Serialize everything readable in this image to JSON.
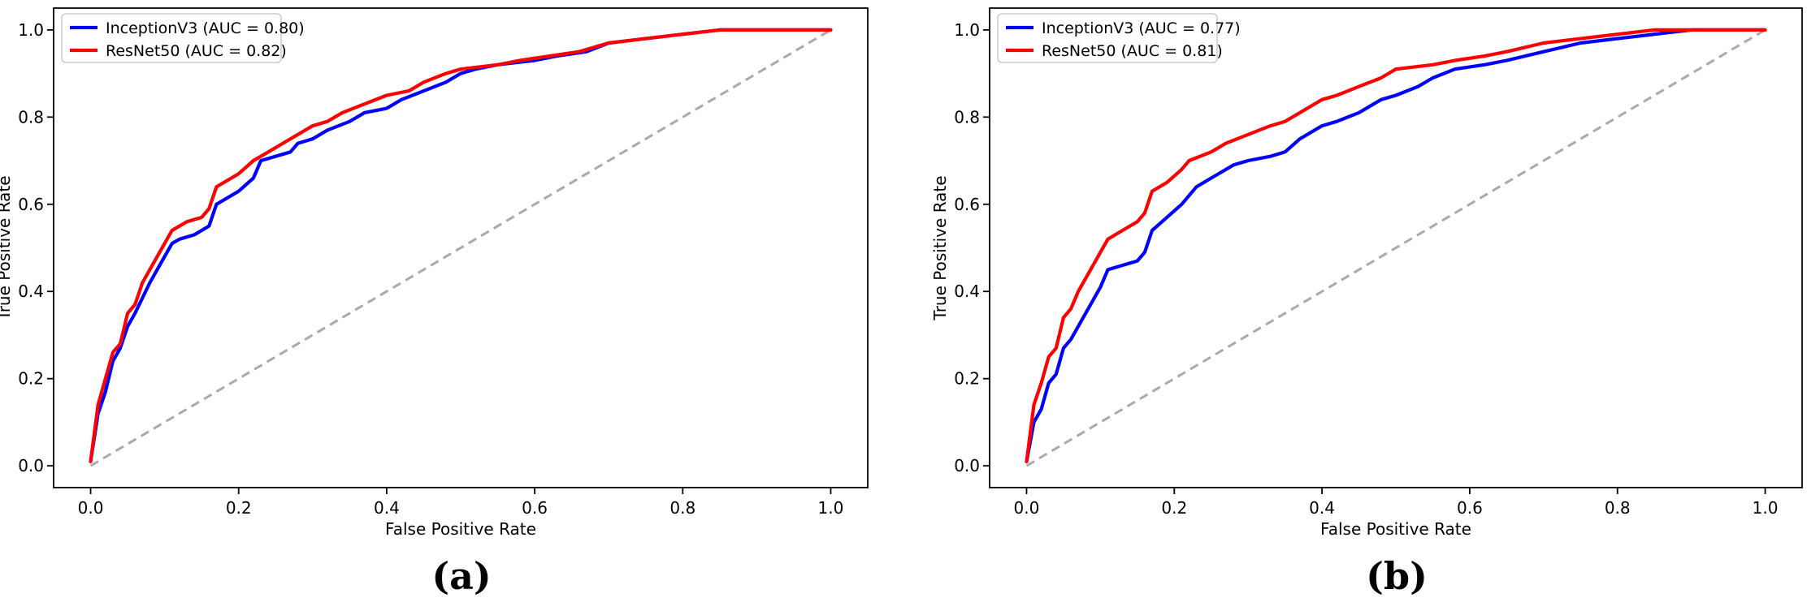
{
  "chart_data": [
    {
      "type": "line",
      "panel_label": "(a)",
      "title": "",
      "xlabel": "False Positive Rate",
      "ylabel": "True Positive Rate",
      "xlim": [
        -0.05,
        1.05
      ],
      "ylim": [
        -0.05,
        1.05
      ],
      "xticks": [
        0.0,
        0.2,
        0.4,
        0.6,
        0.8,
        1.0
      ],
      "yticks": [
        0.0,
        0.2,
        0.4,
        0.6,
        0.8,
        1.0
      ],
      "xtick_labels": [
        "0.0",
        "0.2",
        "0.4",
        "0.6",
        "0.8",
        "1.0"
      ],
      "ytick_labels": [
        "0.0",
        "0.2",
        "0.4",
        "0.6",
        "0.8",
        "1.0"
      ],
      "grid": false,
      "legend_position": "top-left",
      "series": [
        {
          "name": "InceptionV3 (AUC = 0.80)",
          "color": "#0000ff",
          "points": [
            [
              0.0,
              0.01
            ],
            [
              0.01,
              0.12
            ],
            [
              0.02,
              0.17
            ],
            [
              0.03,
              0.24
            ],
            [
              0.04,
              0.27
            ],
            [
              0.05,
              0.32
            ],
            [
              0.06,
              0.35
            ],
            [
              0.08,
              0.42
            ],
            [
              0.1,
              0.48
            ],
            [
              0.11,
              0.51
            ],
            [
              0.12,
              0.52
            ],
            [
              0.14,
              0.53
            ],
            [
              0.16,
              0.55
            ],
            [
              0.17,
              0.6
            ],
            [
              0.2,
              0.63
            ],
            [
              0.22,
              0.66
            ],
            [
              0.23,
              0.7
            ],
            [
              0.25,
              0.71
            ],
            [
              0.27,
              0.72
            ],
            [
              0.28,
              0.74
            ],
            [
              0.3,
              0.75
            ],
            [
              0.32,
              0.77
            ],
            [
              0.35,
              0.79
            ],
            [
              0.37,
              0.81
            ],
            [
              0.4,
              0.82
            ],
            [
              0.42,
              0.84
            ],
            [
              0.45,
              0.86
            ],
            [
              0.48,
              0.88
            ],
            [
              0.5,
              0.9
            ],
            [
              0.52,
              0.91
            ],
            [
              0.55,
              0.92
            ],
            [
              0.6,
              0.93
            ],
            [
              0.63,
              0.94
            ],
            [
              0.67,
              0.95
            ],
            [
              0.7,
              0.97
            ],
            [
              0.75,
              0.98
            ],
            [
              0.8,
              0.99
            ],
            [
              0.85,
              1.0
            ],
            [
              0.9,
              1.0
            ],
            [
              1.0,
              1.0
            ]
          ]
        },
        {
          "name": "ResNet50 (AUC = 0.82)",
          "color": "#ff0000",
          "points": [
            [
              0.0,
              0.01
            ],
            [
              0.01,
              0.14
            ],
            [
              0.02,
              0.2
            ],
            [
              0.03,
              0.26
            ],
            [
              0.04,
              0.28
            ],
            [
              0.05,
              0.35
            ],
            [
              0.06,
              0.37
            ],
            [
              0.07,
              0.42
            ],
            [
              0.09,
              0.48
            ],
            [
              0.11,
              0.54
            ],
            [
              0.13,
              0.56
            ],
            [
              0.15,
              0.57
            ],
            [
              0.16,
              0.59
            ],
            [
              0.17,
              0.64
            ],
            [
              0.2,
              0.67
            ],
            [
              0.22,
              0.7
            ],
            [
              0.24,
              0.72
            ],
            [
              0.26,
              0.74
            ],
            [
              0.28,
              0.76
            ],
            [
              0.3,
              0.78
            ],
            [
              0.32,
              0.79
            ],
            [
              0.34,
              0.81
            ],
            [
              0.37,
              0.83
            ],
            [
              0.4,
              0.85
            ],
            [
              0.43,
              0.86
            ],
            [
              0.45,
              0.88
            ],
            [
              0.48,
              0.9
            ],
            [
              0.5,
              0.91
            ],
            [
              0.55,
              0.92
            ],
            [
              0.58,
              0.93
            ],
            [
              0.62,
              0.94
            ],
            [
              0.66,
              0.95
            ],
            [
              0.7,
              0.97
            ],
            [
              0.75,
              0.98
            ],
            [
              0.8,
              0.99
            ],
            [
              0.85,
              1.0
            ],
            [
              0.9,
              1.0
            ],
            [
              1.0,
              1.0
            ]
          ]
        }
      ],
      "reference_line": {
        "name": "chance",
        "color": "#aaaaaa",
        "points": [
          [
            0.0,
            0.0
          ],
          [
            1.0,
            1.0
          ]
        ]
      }
    },
    {
      "type": "line",
      "panel_label": "(b)",
      "title": "",
      "xlabel": "False Positive Rate",
      "ylabel": "True Positive Rate",
      "xlim": [
        -0.05,
        1.05
      ],
      "ylim": [
        -0.05,
        1.05
      ],
      "xticks": [
        0.0,
        0.2,
        0.4,
        0.6,
        0.8,
        1.0
      ],
      "yticks": [
        0.0,
        0.2,
        0.4,
        0.6,
        0.8,
        1.0
      ],
      "xtick_labels": [
        "0.0",
        "0.2",
        "0.4",
        "0.6",
        "0.8",
        "1.0"
      ],
      "ytick_labels": [
        "0.0",
        "0.2",
        "0.4",
        "0.6",
        "0.8",
        "1.0"
      ],
      "grid": false,
      "legend_position": "top-left",
      "series": [
        {
          "name": "InceptionV3 (AUC = 0.77)",
          "color": "#0000ff",
          "points": [
            [
              0.0,
              0.01
            ],
            [
              0.01,
              0.1
            ],
            [
              0.02,
              0.13
            ],
            [
              0.03,
              0.19
            ],
            [
              0.04,
              0.21
            ],
            [
              0.05,
              0.27
            ],
            [
              0.06,
              0.29
            ],
            [
              0.08,
              0.35
            ],
            [
              0.1,
              0.41
            ],
            [
              0.11,
              0.45
            ],
            [
              0.13,
              0.46
            ],
            [
              0.15,
              0.47
            ],
            [
              0.16,
              0.49
            ],
            [
              0.17,
              0.54
            ],
            [
              0.19,
              0.57
            ],
            [
              0.21,
              0.6
            ],
            [
              0.23,
              0.64
            ],
            [
              0.25,
              0.66
            ],
            [
              0.27,
              0.68
            ],
            [
              0.28,
              0.69
            ],
            [
              0.3,
              0.7
            ],
            [
              0.33,
              0.71
            ],
            [
              0.35,
              0.72
            ],
            [
              0.37,
              0.75
            ],
            [
              0.4,
              0.78
            ],
            [
              0.42,
              0.79
            ],
            [
              0.45,
              0.81
            ],
            [
              0.48,
              0.84
            ],
            [
              0.5,
              0.85
            ],
            [
              0.53,
              0.87
            ],
            [
              0.55,
              0.89
            ],
            [
              0.58,
              0.91
            ],
            [
              0.62,
              0.92
            ],
            [
              0.65,
              0.93
            ],
            [
              0.7,
              0.95
            ],
            [
              0.75,
              0.97
            ],
            [
              0.8,
              0.98
            ],
            [
              0.85,
              0.99
            ],
            [
              0.9,
              1.0
            ],
            [
              1.0,
              1.0
            ]
          ]
        },
        {
          "name": "ResNet50 (AUC = 0.81)",
          "color": "#ff0000",
          "points": [
            [
              0.0,
              0.01
            ],
            [
              0.01,
              0.14
            ],
            [
              0.02,
              0.19
            ],
            [
              0.03,
              0.25
            ],
            [
              0.04,
              0.27
            ],
            [
              0.05,
              0.34
            ],
            [
              0.06,
              0.36
            ],
            [
              0.07,
              0.4
            ],
            [
              0.09,
              0.46
            ],
            [
              0.11,
              0.52
            ],
            [
              0.13,
              0.54
            ],
            [
              0.15,
              0.56
            ],
            [
              0.16,
              0.58
            ],
            [
              0.17,
              0.63
            ],
            [
              0.19,
              0.65
            ],
            [
              0.21,
              0.68
            ],
            [
              0.22,
              0.7
            ],
            [
              0.25,
              0.72
            ],
            [
              0.27,
              0.74
            ],
            [
              0.3,
              0.76
            ],
            [
              0.33,
              0.78
            ],
            [
              0.35,
              0.79
            ],
            [
              0.37,
              0.81
            ],
            [
              0.4,
              0.84
            ],
            [
              0.42,
              0.85
            ],
            [
              0.45,
              0.87
            ],
            [
              0.48,
              0.89
            ],
            [
              0.5,
              0.91
            ],
            [
              0.55,
              0.92
            ],
            [
              0.58,
              0.93
            ],
            [
              0.62,
              0.94
            ],
            [
              0.65,
              0.95
            ],
            [
              0.7,
              0.97
            ],
            [
              0.75,
              0.98
            ],
            [
              0.8,
              0.99
            ],
            [
              0.85,
              1.0
            ],
            [
              0.9,
              1.0
            ],
            [
              1.0,
              1.0
            ]
          ]
        }
      ],
      "reference_line": {
        "name": "chance",
        "color": "#aaaaaa",
        "points": [
          [
            0.0,
            0.0
          ],
          [
            1.0,
            1.0
          ]
        ]
      }
    }
  ]
}
